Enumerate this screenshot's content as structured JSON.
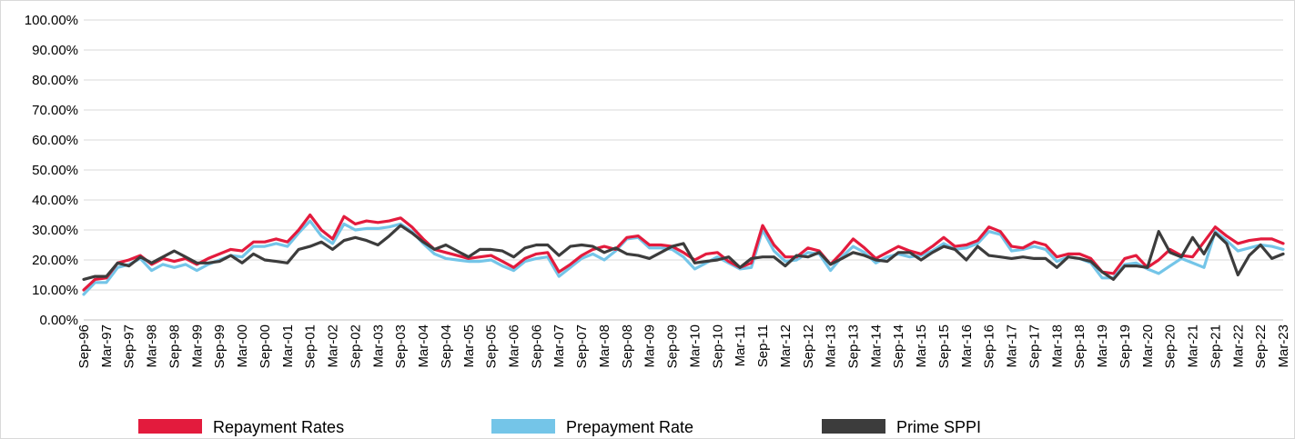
{
  "chart_data": {
    "type": "line",
    "title": "",
    "xlabel": "",
    "ylabel": "",
    "ylim": [
      0,
      100
    ],
    "y_ticks": [
      "0.00%",
      "10.00%",
      "20.00%",
      "30.00%",
      "40.00%",
      "50.00%",
      "60.00%",
      "70.00%",
      "80.00%",
      "90.00%",
      "100.00%"
    ],
    "grid": "horizontal",
    "legend_position": "bottom",
    "x_tick_labels": [
      "Sep-96",
      "Mar-97",
      "Sep-97",
      "Mar-98",
      "Sep-98",
      "Mar-99",
      "Sep-99",
      "Mar-00",
      "Sep-00",
      "Mar-01",
      "Sep-01",
      "Mar-02",
      "Sep-02",
      "Mar-03",
      "Sep-03",
      "Mar-04",
      "Sep-04",
      "Mar-05",
      "Sep-05",
      "Mar-06",
      "Sep-06",
      "Mar-07",
      "Sep-07",
      "Mar-08",
      "Sep-08",
      "Mar-09",
      "Sep-09",
      "Mar-10",
      "Sep-10",
      "Mar-11",
      "Sep-11",
      "Mar-12",
      "Sep-12",
      "Mar-13",
      "Sep-13",
      "Mar-14",
      "Sep-14",
      "Mar-15",
      "Sep-15",
      "Mar-16",
      "Sep-16",
      "Mar-17",
      "Sep-17",
      "Mar-18",
      "Sep-18",
      "Mar-19",
      "Sep-19",
      "Mar-20",
      "Sep-20",
      "Mar-21",
      "Sep-21",
      "Mar-22",
      "Sep-22",
      "Mar-23"
    ],
    "x": [
      "Sep-96",
      "Dec-96",
      "Mar-97",
      "Jun-97",
      "Sep-97",
      "Dec-97",
      "Mar-98",
      "Jun-98",
      "Sep-98",
      "Dec-98",
      "Mar-99",
      "Jun-99",
      "Sep-99",
      "Dec-99",
      "Mar-00",
      "Jun-00",
      "Sep-00",
      "Dec-00",
      "Mar-01",
      "Jun-01",
      "Sep-01",
      "Dec-01",
      "Mar-02",
      "Jun-02",
      "Sep-02",
      "Dec-02",
      "Mar-03",
      "Jun-03",
      "Sep-03",
      "Dec-03",
      "Mar-04",
      "Jun-04",
      "Sep-04",
      "Dec-04",
      "Mar-05",
      "Jun-05",
      "Sep-05",
      "Dec-05",
      "Mar-06",
      "Jun-06",
      "Sep-06",
      "Dec-06",
      "Mar-07",
      "Jun-07",
      "Sep-07",
      "Dec-07",
      "Mar-08",
      "Jun-08",
      "Sep-08",
      "Dec-08",
      "Mar-09",
      "Jun-09",
      "Sep-09",
      "Dec-09",
      "Mar-10",
      "Jun-10",
      "Sep-10",
      "Dec-10",
      "Mar-11",
      "Jun-11",
      "Sep-11",
      "Dec-11",
      "Mar-12",
      "Jun-12",
      "Sep-12",
      "Dec-12",
      "Mar-13",
      "Jun-13",
      "Sep-13",
      "Dec-13",
      "Mar-14",
      "Jun-14",
      "Sep-14",
      "Dec-14",
      "Mar-15",
      "Jun-15",
      "Sep-15",
      "Dec-15",
      "Mar-16",
      "Jun-16",
      "Sep-16",
      "Dec-16",
      "Mar-17",
      "Jun-17",
      "Sep-17",
      "Dec-17",
      "Mar-18",
      "Jun-18",
      "Sep-18",
      "Dec-18",
      "Mar-19",
      "Jun-19",
      "Sep-19",
      "Dec-19",
      "Mar-20",
      "Jun-20",
      "Sep-20",
      "Dec-20",
      "Mar-21",
      "Jun-21",
      "Sep-21",
      "Dec-21",
      "Mar-22",
      "Jun-22",
      "Sep-22",
      "Dec-22",
      "Mar-23"
    ],
    "series": [
      {
        "name": "Repayment Rates",
        "color": "#e31b3d",
        "values": [
          10,
          13.5,
          14,
          19,
          20,
          21.5,
          18.5,
          20.5,
          19.5,
          20.5,
          18.5,
          20.5,
          22,
          23.5,
          23,
          26,
          26,
          27,
          26,
          30,
          35,
          30,
          27,
          34.5,
          32,
          33,
          32.5,
          33,
          34,
          31,
          27,
          23.5,
          22.5,
          21.5,
          20.5,
          21,
          21.5,
          19.5,
          17.5,
          20.5,
          22,
          22.5,
          16,
          18.5,
          21.5,
          23.5,
          24.5,
          23.5,
          27.5,
          28,
          25,
          25,
          24.5,
          22.5,
          20,
          22,
          22.5,
          19.5,
          17.5,
          19,
          31.5,
          25,
          21,
          21,
          24,
          23,
          18.5,
          22.5,
          27,
          24,
          20.5,
          22.5,
          24.5,
          23,
          22,
          24.5,
          27.5,
          24.5,
          25,
          26.5,
          31,
          29.5,
          24.5,
          24,
          26,
          25,
          21,
          22,
          22,
          20.5,
          16,
          15.5,
          20.5,
          21.5,
          17.5,
          20,
          23.5,
          21.5,
          21,
          26,
          31,
          28,
          25.5,
          26.5,
          27,
          27,
          25.5
        ]
      },
      {
        "name": "Prepayment Rate",
        "color": "#74c5e8",
        "values": [
          8.5,
          12.5,
          12.5,
          17.5,
          18.5,
          20.5,
          16.5,
          18.5,
          17.5,
          18.5,
          16.5,
          18.5,
          20,
          21.5,
          21,
          24.5,
          24.5,
          25.5,
          24.5,
          29,
          33,
          28,
          25.5,
          32,
          30,
          30.5,
          30.5,
          31,
          32,
          29.5,
          25.5,
          22,
          20.5,
          20,
          19.5,
          19.5,
          20,
          18,
          16.5,
          19.5,
          20.5,
          21,
          14.5,
          17.5,
          20.5,
          22,
          20,
          23,
          27,
          27.5,
          24,
          24,
          23.5,
          21,
          17,
          19,
          21,
          19,
          17,
          17.5,
          30,
          23,
          19.5,
          20,
          22.5,
          22,
          16.5,
          21,
          24.5,
          22.5,
          19,
          21,
          22,
          21,
          21.5,
          23,
          25.5,
          23.5,
          24,
          25.5,
          29.5,
          28.5,
          23,
          23.5,
          24.5,
          23.5,
          19.5,
          21,
          20.5,
          19,
          14,
          14,
          18.5,
          19,
          17,
          15.5,
          18,
          20.5,
          19,
          17.5,
          29.5,
          26.5,
          23,
          24,
          25,
          24.5,
          23.5
        ]
      },
      {
        "name": "Prime SPPI",
        "color": "#3c3c3c",
        "values": [
          13.5,
          14.5,
          14.5,
          19,
          18,
          21,
          19,
          21,
          23,
          21,
          19,
          19,
          19.5,
          21.5,
          19,
          22,
          20,
          19.5,
          19,
          23.5,
          24.5,
          26,
          23.5,
          26.5,
          27.5,
          26.5,
          25,
          28,
          31.5,
          29,
          26,
          23.5,
          25,
          23,
          21,
          23.5,
          23.5,
          23,
          21,
          24,
          25,
          25,
          21.5,
          24.5,
          25,
          24.5,
          22.5,
          24,
          22,
          21.5,
          20.5,
          22.5,
          24.5,
          25.5,
          19,
          19.5,
          20,
          21,
          17.5,
          20.5,
          21,
          21,
          18,
          21.5,
          21,
          22.5,
          18.5,
          20.5,
          22.5,
          21.5,
          20,
          19.5,
          22.5,
          22.5,
          20,
          22.5,
          24.5,
          23.5,
          20,
          24.5,
          21.5,
          21,
          20.5,
          21,
          20.5,
          20.5,
          17.5,
          21,
          20.5,
          19.5,
          16,
          13.5,
          18,
          18,
          17.5,
          29.5,
          22.5,
          21,
          27.5,
          22,
          29,
          25.5,
          15,
          21.5,
          25,
          20.5,
          22
        ]
      }
    ]
  }
}
